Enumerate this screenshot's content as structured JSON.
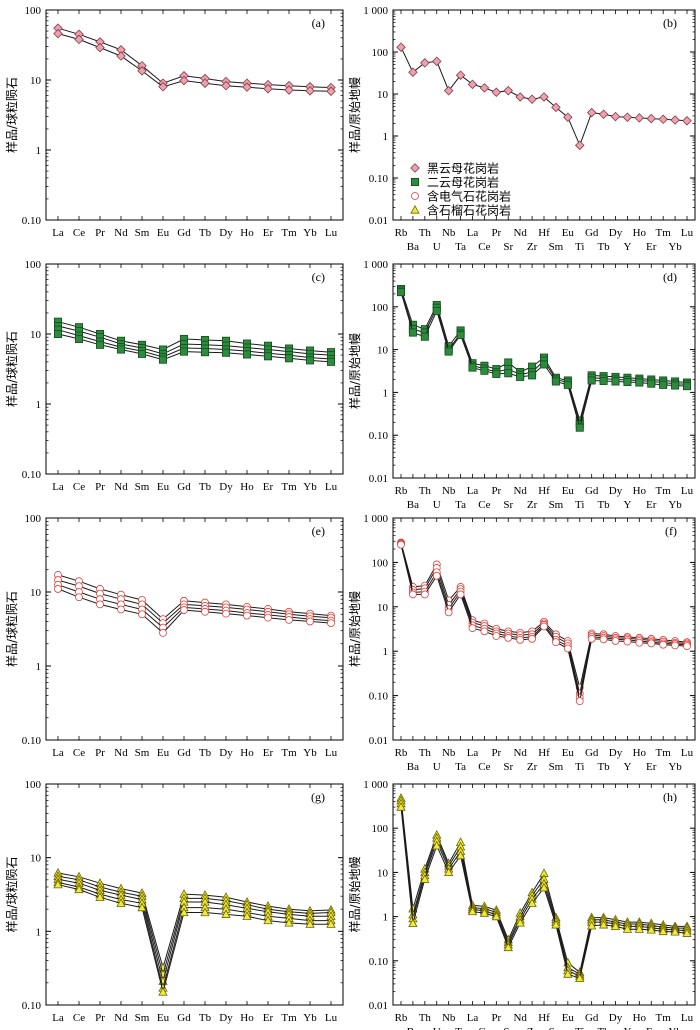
{
  "colors": {
    "biotite": "#e8a3ae",
    "twomica": "#2e8b3e",
    "tourmaline": "#ffffff",
    "garnet": "#f2ea3a",
    "tourmaline_stroke": "#e0403a"
  },
  "legend": [
    {
      "key": "biotite",
      "marker": "diamond",
      "label": "黑云母花岗岩"
    },
    {
      "key": "twomica",
      "marker": "square",
      "label": "二云母花岗岩"
    },
    {
      "key": "tourmaline",
      "marker": "circle",
      "label": "含电气石花岗岩"
    },
    {
      "key": "garnet",
      "marker": "triangle",
      "label": "含石榴石花岗岩"
    }
  ],
  "chart_data": [
    {
      "panel": "(a)",
      "type": "line",
      "log_y": true,
      "ylabel": "样品/球粒陨石",
      "ylim": [
        0.1,
        100
      ],
      "yticks": [
        "0.10",
        "1",
        "10",
        "100"
      ],
      "categories": [
        "La",
        "Ce",
        "Pr",
        "Nd",
        "Sm",
        "Eu",
        "Gd",
        "Tb",
        "Dy",
        "Ho",
        "Er",
        "Tm",
        "Yb",
        "Lu"
      ],
      "marker": "biotite",
      "series": [
        {
          "values": [
            55,
            45,
            35,
            27,
            16,
            9,
            11.5,
            10.5,
            9.5,
            9,
            8.6,
            8.3,
            8,
            7.8
          ]
        },
        {
          "values": [
            46,
            38,
            29,
            22,
            13.5,
            8,
            9.8,
            9,
            8.3,
            7.9,
            7.5,
            7.2,
            7,
            6.9
          ]
        }
      ]
    },
    {
      "panel": "(b)",
      "type": "line",
      "log_y": true,
      "ylabel": "样品/原始地幔",
      "ylim": [
        0.01,
        1000
      ],
      "yticks": [
        "0.01",
        "0.10",
        "1",
        "10",
        "100",
        "1 000"
      ],
      "categories": [
        "Rb",
        "Ba",
        "Th",
        "U",
        "Nb",
        "Ta",
        "La",
        "Ce",
        "Pr",
        "Sr",
        "Nd",
        "Zr",
        "Hf",
        "Sm",
        "Eu",
        "Ti",
        "Gd",
        "Tb",
        "Dy",
        "Y",
        "Ho",
        "Er",
        "Tm",
        "Yb",
        "Lu"
      ],
      "marker": "biotite",
      "series": [
        {
          "values": [
            130,
            33,
            55,
            60,
            12,
            28,
            17,
            14,
            11,
            12,
            8.5,
            7.5,
            8.5,
            4.8,
            2.8,
            0.6,
            3.6,
            3.3,
            2.9,
            2.8,
            2.7,
            2.6,
            2.5,
            2.4,
            2.3
          ]
        }
      ]
    },
    {
      "panel": "(c)",
      "type": "line",
      "log_y": true,
      "ylabel": "样品/球粒陨石",
      "ylim": [
        0.1,
        100
      ],
      "yticks": [
        "0.10",
        "1",
        "10",
        "100"
      ],
      "categories": [
        "La",
        "Ce",
        "Pr",
        "Nd",
        "Sm",
        "Eu",
        "Gd",
        "Tb",
        "Dy",
        "Ho",
        "Er",
        "Tm",
        "Yb",
        "Lu"
      ],
      "marker": "twomica",
      "series": [
        {
          "values": [
            15,
            12.5,
            10,
            8,
            7,
            6,
            8.5,
            8.2,
            8,
            7.3,
            6.8,
            6.2,
            5.8,
            5.5
          ]
        },
        {
          "values": [
            13,
            11,
            9,
            7.2,
            6.3,
            5.2,
            7.2,
            7,
            6.8,
            6.4,
            6,
            5.6,
            5.2,
            5
          ]
        },
        {
          "values": [
            11.5,
            9.5,
            7.8,
            6.5,
            5.7,
            4.7,
            6.3,
            6.2,
            6,
            5.7,
            5.3,
            5,
            4.6,
            4.4
          ]
        },
        {
          "values": [
            10,
            8.5,
            7,
            6,
            5.2,
            4.3,
            5.6,
            5.5,
            5.4,
            5.1,
            4.8,
            4.5,
            4.2,
            4
          ]
        }
      ]
    },
    {
      "panel": "(d)",
      "type": "line",
      "log_y": true,
      "ylabel": "样品/原始地幔",
      "ylim": [
        0.01,
        1000
      ],
      "yticks": [
        "0.01",
        "0.10",
        "1",
        "10",
        "100",
        "1 000"
      ],
      "categories": [
        "Rb",
        "Ba",
        "Th",
        "U",
        "Nb",
        "Ta",
        "La",
        "Ce",
        "Pr",
        "Sr",
        "Nd",
        "Zr",
        "Hf",
        "Sm",
        "Eu",
        "Ti",
        "Gd",
        "Tb",
        "Dy",
        "Y",
        "Ho",
        "Er",
        "Tm",
        "Yb",
        "Lu"
      ],
      "marker": "twomica",
      "series": [
        {
          "values": [
            260,
            38,
            30,
            110,
            12,
            28,
            4.8,
            4.2,
            3.5,
            5,
            3,
            4,
            6.5,
            2.2,
            1.9,
            0.22,
            2.5,
            2.4,
            2.3,
            2.2,
            2.1,
            2,
            1.9,
            1.8,
            1.7
          ]
        },
        {
          "values": [
            240,
            30,
            25,
            95,
            10,
            24,
            4.2,
            3.6,
            3,
            3.5,
            2.6,
            3,
            5.5,
            2,
            1.7,
            0.18,
            2.2,
            2.1,
            2,
            1.95,
            1.9,
            1.8,
            1.7,
            1.6,
            1.55
          ]
        },
        {
          "values": [
            220,
            25,
            20,
            80,
            9,
            22,
            3.8,
            3.2,
            2.7,
            2.8,
            2.3,
            2.5,
            4.5,
            1.8,
            1.5,
            0.15,
            1.9,
            1.85,
            1.8,
            1.75,
            1.7,
            1.6,
            1.5,
            1.45,
            1.4
          ]
        }
      ]
    },
    {
      "panel": "(e)",
      "type": "line",
      "log_y": true,
      "ylabel": "样品/球粒陨石",
      "ylim": [
        0.1,
        100
      ],
      "yticks": [
        "0.10",
        "1",
        "10",
        "100"
      ],
      "categories": [
        "La",
        "Ce",
        "Pr",
        "Nd",
        "Sm",
        "Eu",
        "Gd",
        "Tb",
        "Dy",
        "Ho",
        "Er",
        "Tm",
        "Yb",
        "Lu"
      ],
      "marker": "tourmaline",
      "series": [
        {
          "values": [
            17,
            14,
            11,
            9.2,
            7.8,
            4.3,
            7.6,
            7.2,
            6.8,
            6.3,
            5.9,
            5.4,
            5.1,
            4.8
          ]
        },
        {
          "values": [
            14.5,
            12,
            9.5,
            8,
            6.8,
            3.8,
            6.8,
            6.5,
            6.2,
            5.8,
            5.4,
            5,
            4.7,
            4.5
          ]
        },
        {
          "values": [
            12.5,
            10,
            8,
            6.8,
            5.8,
            3.3,
            6.2,
            5.9,
            5.6,
            5.2,
            4.9,
            4.6,
            4.3,
            4.1
          ]
        },
        {
          "values": [
            11,
            8.5,
            6.8,
            5.8,
            5,
            2.8,
            5.7,
            5.4,
            5.1,
            4.8,
            4.5,
            4.2,
            4,
            3.8
          ]
        }
      ]
    },
    {
      "panel": "(f)",
      "type": "line",
      "log_y": true,
      "ylabel": "样品/原始地幔",
      "ylim": [
        0.01,
        1000
      ],
      "yticks": [
        "0.01",
        "0.10",
        "1",
        "10",
        "100",
        "1 000"
      ],
      "categories": [
        "Rb",
        "Ba",
        "Th",
        "U",
        "Nb",
        "Ta",
        "La",
        "Ce",
        "Pr",
        "Sr",
        "Nd",
        "Zr",
        "Hf",
        "Sm",
        "Eu",
        "Ti",
        "Gd",
        "Tb",
        "Dy",
        "Y",
        "Ho",
        "Er",
        "Tm",
        "Yb",
        "Lu"
      ],
      "marker": "tourmaline",
      "series": [
        {
          "values": [
            280,
            28,
            30,
            90,
            14,
            28,
            5,
            4.2,
            3.2,
            2.8,
            2.6,
            2.8,
            4.6,
            2.4,
            1.7,
            0.15,
            2.5,
            2.4,
            2.2,
            2.1,
            2,
            1.9,
            1.8,
            1.7,
            1.6
          ]
        },
        {
          "values": [
            270,
            24,
            26,
            75,
            11,
            25,
            4.4,
            3.7,
            2.8,
            2.5,
            2.3,
            2.4,
            4.2,
            2.1,
            1.5,
            0.11,
            2.3,
            2.2,
            2,
            1.95,
            1.85,
            1.75,
            1.65,
            1.55,
            1.5
          ]
        },
        {
          "values": [
            260,
            21,
            22,
            60,
            9,
            22,
            3.8,
            3.2,
            2.5,
            2.2,
            2,
            2.1,
            3.9,
            1.8,
            1.3,
            0.09,
            2.1,
            2,
            1.85,
            1.8,
            1.7,
            1.6,
            1.5,
            1.45,
            1.4
          ]
        },
        {
          "values": [
            250,
            19,
            19,
            50,
            7.5,
            19,
            3.3,
            2.8,
            2.2,
            2,
            1.8,
            1.9,
            3.6,
            1.6,
            1.15,
            0.075,
            1.9,
            1.85,
            1.7,
            1.65,
            1.55,
            1.5,
            1.4,
            1.35,
            1.3
          ]
        }
      ]
    },
    {
      "panel": "(g)",
      "type": "line",
      "log_y": true,
      "ylabel": "样品/球粒陨石",
      "ylim": [
        0.1,
        100
      ],
      "yticks": [
        "0.10",
        "1",
        "10",
        "100"
      ],
      "categories": [
        "La",
        "Ce",
        "Pr",
        "Nd",
        "Sm",
        "Eu",
        "Gd",
        "Tb",
        "Dy",
        "Ho",
        "Er",
        "Tm",
        "Yb",
        "Lu"
      ],
      "marker": "garnet",
      "series": [
        {
          "values": [
            6.2,
            5.5,
            4.5,
            3.8,
            3.3,
            0.32,
            3.2,
            3.1,
            2.9,
            2.5,
            2.2,
            2.0,
            1.9,
            1.95
          ]
        },
        {
          "values": [
            5.6,
            5,
            4,
            3.4,
            3,
            0.26,
            2.8,
            2.8,
            2.6,
            2.3,
            2,
            1.85,
            1.75,
            1.8
          ]
        },
        {
          "values": [
            5.1,
            4.5,
            3.6,
            3.1,
            2.7,
            0.21,
            2.5,
            2.5,
            2.3,
            2.05,
            1.85,
            1.7,
            1.6,
            1.6
          ]
        },
        {
          "values": [
            4.6,
            4,
            3.2,
            2.7,
            2.4,
            0.17,
            2.1,
            2.1,
            2.0,
            1.8,
            1.6,
            1.5,
            1.4,
            1.4
          ]
        },
        {
          "values": [
            4.3,
            3.7,
            2.9,
            2.4,
            2.1,
            0.15,
            1.8,
            1.8,
            1.7,
            1.6,
            1.4,
            1.3,
            1.25,
            1.25
          ]
        }
      ]
    },
    {
      "panel": "(h)",
      "type": "line",
      "log_y": true,
      "ylabel": "样品/原始地幔",
      "ylim": [
        0.01,
        1000
      ],
      "yticks": [
        "0.01",
        "0.10",
        "1",
        "10",
        "100",
        "1 000"
      ],
      "categories": [
        "Rb",
        "Ba",
        "Th",
        "U",
        "Nb",
        "Ta",
        "La",
        "Ce",
        "Pr",
        "Sr",
        "Nd",
        "Zr",
        "Hf",
        "Sm",
        "Eu",
        "Ti",
        "Gd",
        "Tb",
        "Dy",
        "Y",
        "Ho",
        "Er",
        "Tm",
        "Yb",
        "Lu"
      ],
      "marker": "garnet",
      "series": [
        {
          "values": [
            480,
            1.5,
            12,
            70,
            16,
            48,
            1.8,
            1.7,
            1.4,
            0.3,
            1.2,
            3.5,
            9.5,
            0.95,
            0.09,
            0.055,
            0.95,
            0.95,
            0.85,
            0.75,
            0.75,
            0.7,
            0.65,
            0.6,
            0.6
          ]
        },
        {
          "values": [
            420,
            1.1,
            10,
            60,
            14,
            38,
            1.6,
            1.5,
            1.25,
            0.26,
            1,
            3,
            7,
            0.85,
            0.07,
            0.05,
            0.85,
            0.85,
            0.75,
            0.68,
            0.68,
            0.63,
            0.58,
            0.55,
            0.55
          ]
        },
        {
          "values": [
            360,
            0.9,
            8.5,
            50,
            12,
            30,
            1.45,
            1.35,
            1.1,
            0.23,
            0.85,
            2.5,
            5.5,
            0.75,
            0.06,
            0.045,
            0.75,
            0.75,
            0.68,
            0.6,
            0.6,
            0.56,
            0.52,
            0.5,
            0.48
          ]
        },
        {
          "values": [
            300,
            0.7,
            7,
            40,
            10,
            24,
            1.3,
            1.2,
            1,
            0.2,
            0.72,
            2,
            4.5,
            0.65,
            0.05,
            0.04,
            0.62,
            0.65,
            0.6,
            0.52,
            0.52,
            0.5,
            0.46,
            0.45,
            0.42
          ]
        }
      ]
    }
  ]
}
